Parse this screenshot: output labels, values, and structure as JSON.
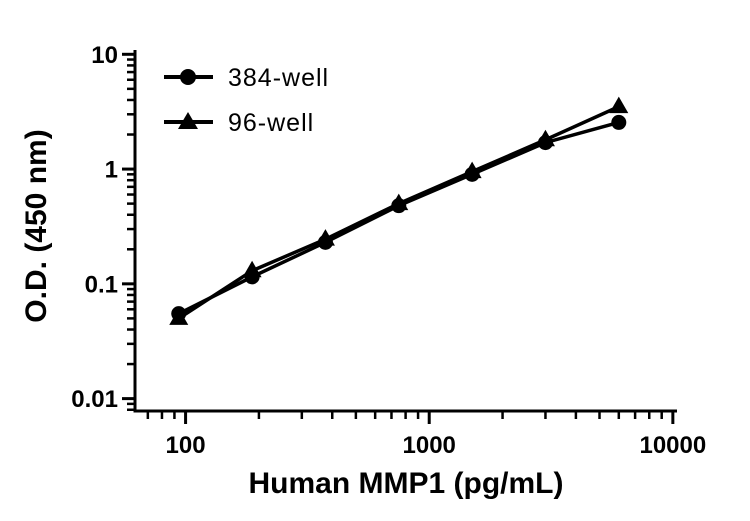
{
  "chart_data": {
    "type": "line",
    "title": "",
    "xlabel": "Human MMP1 (pg/mL)",
    "ylabel": "O.D. (450 nm)",
    "x_scale": "log",
    "y_scale": "log",
    "xlim": [
      62,
      10400
    ],
    "ylim": [
      0.0078,
      10.9
    ],
    "x_ticks": [
      100,
      1000,
      10000
    ],
    "x_tick_labels": [
      "100",
      "1000",
      "10000"
    ],
    "y_ticks": [
      10,
      1,
      0.1,
      0.01
    ],
    "y_tick_labels": [
      "10",
      "1",
      "0.1",
      "0.01"
    ],
    "grid": false,
    "legend_position": "top-left-inside",
    "color": "#000000",
    "x": [
      93.75,
      187.5,
      375,
      750,
      1500,
      3000,
      6000
    ],
    "series": [
      {
        "name": "384-well",
        "marker": "circle",
        "values": [
          0.055,
          0.115,
          0.23,
          0.48,
          0.9,
          1.7,
          2.55
        ]
      },
      {
        "name": "96-well",
        "marker": "triangle",
        "values": [
          0.05,
          0.13,
          0.245,
          0.5,
          0.95,
          1.8,
          3.5
        ]
      }
    ]
  }
}
